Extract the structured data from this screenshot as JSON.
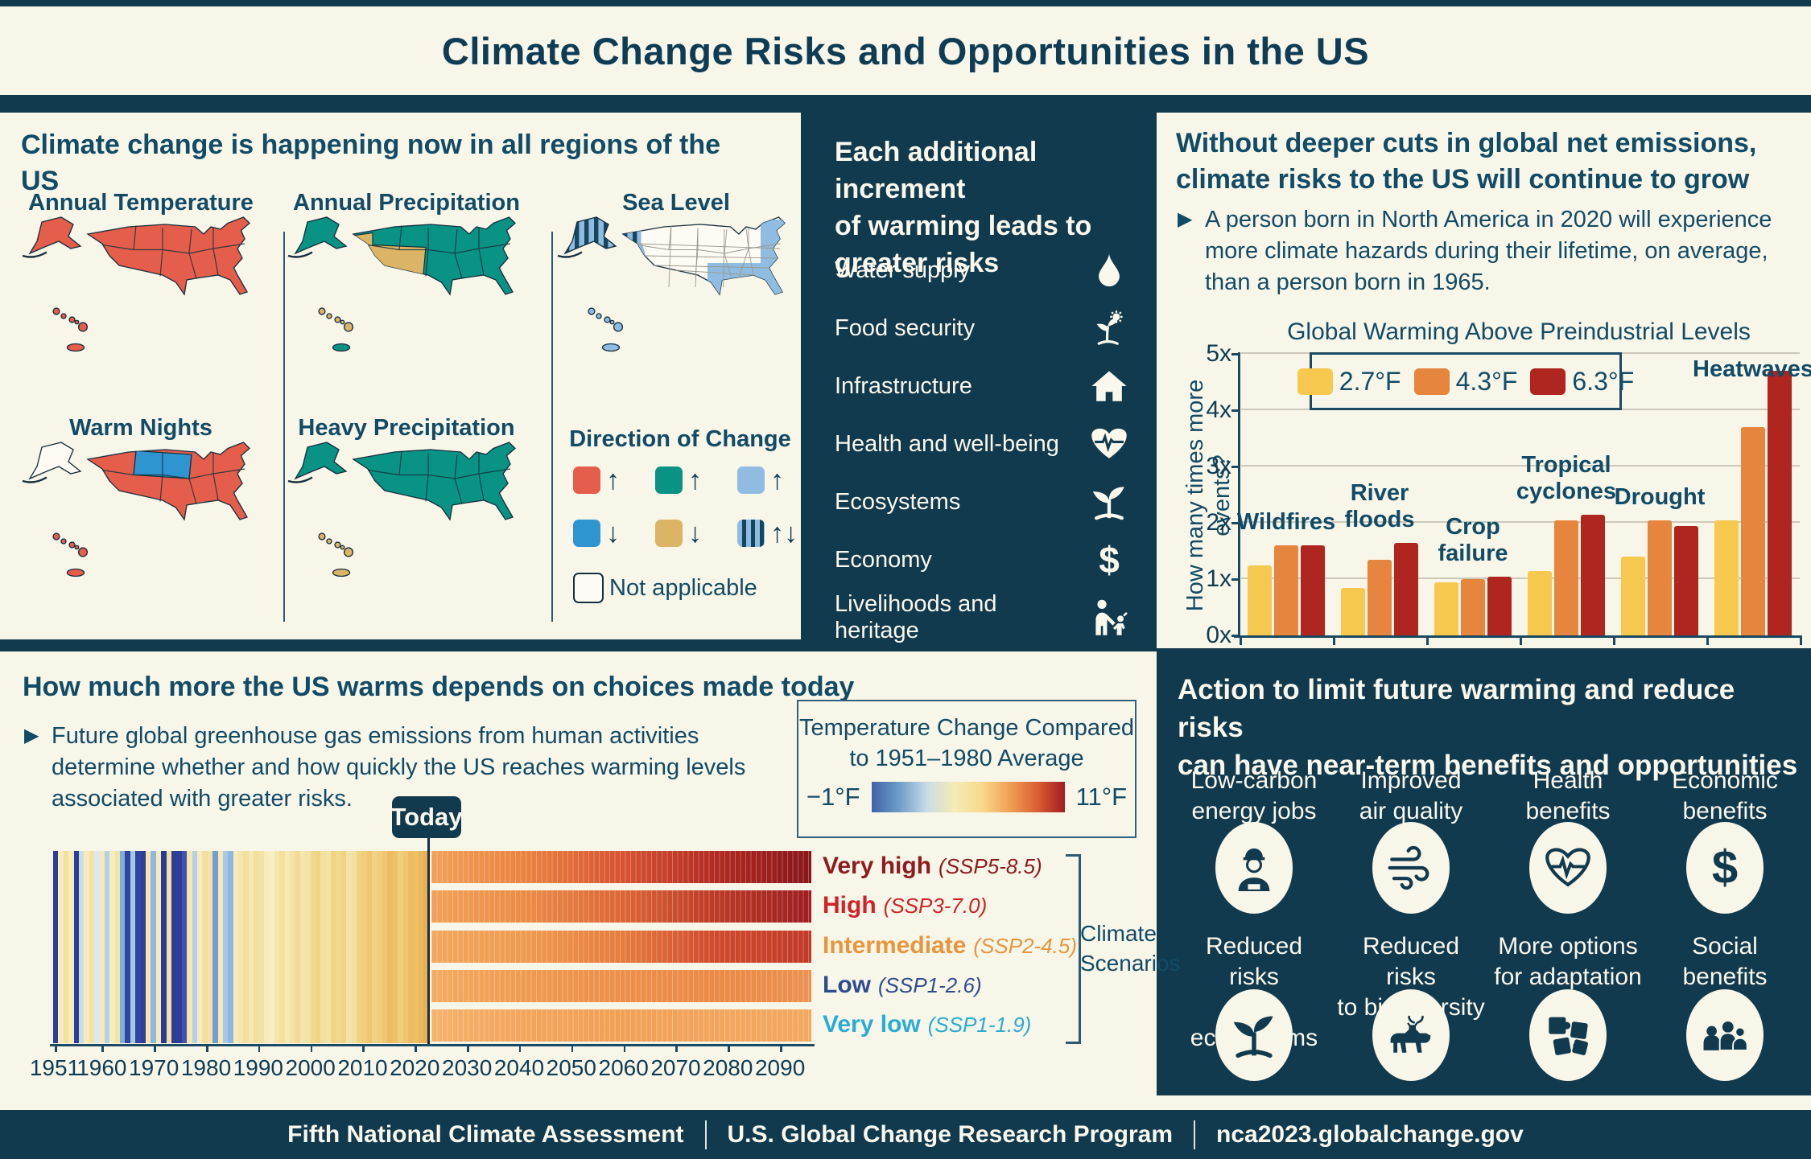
{
  "title": "Climate Change Risks and Opportunities in the US",
  "colors": {
    "css": {
      "navy": "#113A4F",
      "cream": "#F8F5E9",
      "ink": "#124B66",
      "ink-dark": "#0E3C55",
      "axis": "#1C4962",
      "grid": "#CCC8BA",
      "white-text": "#FAF7EC",
      "map-lblue": "#8FBCE0",
      "map-hatch": "#15465F"
    },
    "map": {
      "red": "#E55D4B",
      "teal": "#089384",
      "tan": "#DCB465",
      "blue": "#2E95D1",
      "light_blue": "#8FBCE0",
      "white": "#FDFBF3",
      "hatch": "#15465F"
    }
  },
  "panels": {
    "regions": {
      "heading": "Climate change is happening now in all regions of the US",
      "maps": [
        {
          "label": "Annual Temperature",
          "conus": "red",
          "alaska": "red",
          "hawaii": "red",
          "puerto_rico": "red"
        },
        {
          "label": "Annual Precipitation",
          "conus": "teal",
          "alaska": "teal",
          "hawaii": "tan",
          "puerto_rico": "teal",
          "overlay": "southwest-tan"
        },
        {
          "label": "Sea Level",
          "conus": "white",
          "alaska": "striped",
          "hawaii": "light_blue",
          "puerto_rico": "light_blue",
          "overlay": "coastal-blue-and-striped-northwest"
        },
        {
          "label": "Warm Nights",
          "conus": "red",
          "alaska": "white",
          "hawaii": "red",
          "puerto_rico": "red",
          "overlay": "northern-plains-blue"
        },
        {
          "label": "Heavy Precipitation",
          "conus": "teal",
          "alaska": "teal",
          "hawaii": "tan",
          "puerto_rico": "tan"
        }
      ],
      "legend": {
        "title": "Direction of Change",
        "items": [
          {
            "swatch": "red",
            "arrow": "↑"
          },
          {
            "swatch": "teal",
            "arrow": "↑"
          },
          {
            "swatch": "light_blue",
            "arrow": "↑"
          },
          {
            "swatch": "blue",
            "arrow": "↓"
          },
          {
            "swatch": "tan",
            "arrow": "↓"
          },
          {
            "swatch": "striped",
            "arrow": "↑↓"
          }
        ],
        "not_applicable": "Not applicable"
      }
    },
    "increments": {
      "heading": "Each additional increment\nof warming leads to\ngreater risks",
      "items": [
        {
          "label": "Water supply",
          "icon": "droplet-icon"
        },
        {
          "label": "Food security",
          "icon": "plant-sun-icon"
        },
        {
          "label": "Infrastructure",
          "icon": "house-icon"
        },
        {
          "label": "Health and well-being",
          "icon": "heart-pulse-icon"
        },
        {
          "label": "Ecosystems",
          "icon": "seedling-icon"
        },
        {
          "label": "Economy",
          "icon": "dollar-icon"
        },
        {
          "label": "Livelihoods and heritage",
          "icon": "people-figures-icon"
        }
      ]
    },
    "emissions": {
      "heading": "Without deeper cuts in global net emissions,\nclimate risks to the US will continue to grow",
      "bullet": "A person born in North America in 2020 will experience\nmore climate hazards during their lifetime, on average,\nthan a person born in 1965."
    },
    "choices": {
      "heading": "How much more the US warms depends on choices made today",
      "bullet": "Future global greenhouse gas emissions from human activities\ndetermine whether and how quickly the US reaches warming levels\nassociated with greater risks.",
      "today_label": "Today",
      "legend_box": {
        "title": "Temperature Change Compared\nto 1951–1980 Average",
        "min": "−1°F",
        "max": "11°F",
        "gradient": [
          "#3F63A8",
          "#6E9CC9",
          "#C8DCE8",
          "#F5EBB5",
          "#F7D98C",
          "#EFA055",
          "#D95F33",
          "#A31C22"
        ]
      },
      "bracket_label": "Climate\nScenarios"
    },
    "action": {
      "heading": "Action to limit future warming and reduce risks\ncan have near-term benefits and opportunities",
      "items": [
        {
          "label": "Low-carbon\nenergy jobs",
          "icon": "worker-icon"
        },
        {
          "label": "Improved\nair quality",
          "icon": "wind-icon"
        },
        {
          "label": "Health\nbenefits",
          "icon": "heart-pulse-icon"
        },
        {
          "label": "Economic\nbenefits",
          "icon": "dollar-icon"
        },
        {
          "label": "Reduced risks\nto ecosystems",
          "icon": "seedling-icon"
        },
        {
          "label": "Reduced risks\nto biodiversity",
          "icon": "moose-icon"
        },
        {
          "label": "More options\nfor adaptation",
          "icon": "puzzle-icon"
        },
        {
          "label": "Social\nbenefits",
          "icon": "people-group-icon"
        }
      ]
    }
  },
  "footer": {
    "items": [
      "Fifth National Climate Assessment",
      "U.S. Global Change Research Program",
      "nca2023.globalchange.gov"
    ]
  },
  "chart_data": [
    {
      "type": "bar",
      "title": "Global Warming Above Preindustrial Levels",
      "ylabel": "How many times more events?",
      "ylim": [
        0,
        5
      ],
      "yticks": [
        "0x",
        "1x",
        "2x",
        "3x",
        "4x",
        "5x"
      ],
      "grid": true,
      "legend_position": "top",
      "categories": [
        "Wildfires",
        "River\nfloods",
        "Crop\nfailure",
        "Tropical\ncyclones",
        "Drought",
        "Heatwaves"
      ],
      "series": [
        {
          "name": "2.7°F",
          "color": "#F6C94E",
          "values": [
            1.25,
            0.85,
            0.95,
            1.15,
            1.4,
            2.05
          ]
        },
        {
          "name": "4.3°F",
          "color": "#E5853E",
          "values": [
            1.6,
            1.35,
            1.0,
            2.05,
            2.05,
            3.7
          ]
        },
        {
          "name": "6.3°F",
          "color": "#AF2520",
          "values": [
            1.6,
            1.65,
            1.05,
            2.15,
            1.95,
            4.7
          ]
        }
      ]
    },
    {
      "type": "area",
      "name": "warming-stripes-scenarios",
      "x_start": 1951,
      "x_end": 2096,
      "today": 2023,
      "xticks": [
        1951,
        1960,
        1970,
        1980,
        1990,
        2000,
        2010,
        2020,
        2030,
        2040,
        2050,
        2060,
        2070,
        2080,
        2090
      ],
      "history_colors": [
        "#2E3D96",
        "#F7ECBC",
        "#F3DF9E",
        "#F7ECBC",
        "#2E3D96",
        "#C9DCEE",
        "#F7EBB8",
        "#F3E2A6",
        "#DDE9F2",
        "#F6E9B4",
        "#B3D2E9",
        "#F7ECBC",
        "#F4E3A8",
        "#7FAEDA",
        "#31459E",
        "#A5C9E6",
        "#31459E",
        "#2E3D96",
        "#F5E6AE",
        "#8FB8DE",
        "#F7EBB8",
        "#2A3A92",
        "#F4E2A4",
        "#2E3D96",
        "#2E3D96",
        "#3E55AC",
        "#F5E6AE",
        "#B3D2E9",
        "#F7ECBC",
        "#F3DF9E",
        "#F4E3A8",
        "#6FA0D0",
        "#F6E9B4",
        "#A5C9E6",
        "#8FB8DE",
        "#F7EBB8",
        "#F5E6AE",
        "#F3DF9E",
        "#F6E9B4",
        "#F3DF9E",
        "#F4E3A8",
        "#F7ECBC",
        "#F7EEC4",
        "#F5E6AE",
        "#F3DF9E",
        "#F6E9B4",
        "#F4E3A8",
        "#F2DB96",
        "#F5E6AE",
        "#F4E3A8",
        "#F2D88F",
        "#F1D385",
        "#F3DF9E",
        "#F4E3A8",
        "#F1D385",
        "#F2D88F",
        "#F1D385",
        "#F4E3A8",
        "#F3DF9E",
        "#F1D385",
        "#F0CE7C",
        "#EFC671",
        "#F1D385",
        "#F0CE7C",
        "#EFC671",
        "#EDBC60",
        "#EEC167",
        "#F0CE7C",
        "#EFC671",
        "#EDBC60",
        "#EEC167",
        "#ECB65A",
        "#EBAF52"
      ],
      "scenarios": [
        {
          "name": "Very high",
          "ssp": "(SSP5-8.5)",
          "label_color": "#8E1B1E",
          "gradient": [
            "#F2A158",
            "#E9823F",
            "#D85432",
            "#B22A22",
            "#8A161A"
          ]
        },
        {
          "name": "High",
          "ssp": "(SSP3-7.0)",
          "label_color": "#CE2428",
          "gradient": [
            "#F2A158",
            "#EB8B46",
            "#DD6636",
            "#BC3A26",
            "#9E1E22"
          ]
        },
        {
          "name": "Intermediate",
          "ssp": "(SSP2-4.5)",
          "label_color": "#E8953C",
          "gradient": [
            "#F3A75E",
            "#EF9A4E",
            "#E67C3E",
            "#D0492C",
            "#C23A28"
          ]
        },
        {
          "name": "Low",
          "ssp": "(SSP1-2.6)",
          "label_color": "#2E4D8E",
          "gradient": [
            "#F4AB62",
            "#F09A50",
            "#EC8F4A",
            "#EA8A46",
            "#EC9150"
          ]
        },
        {
          "name": "Very low",
          "ssp": "(SSP1-1.9)",
          "label_color": "#2AACD3",
          "gradient": [
            "#F6B26B",
            "#F3A55C",
            "#F1A156",
            "#F2A55E",
            "#F3A85F"
          ]
        }
      ]
    }
  ]
}
